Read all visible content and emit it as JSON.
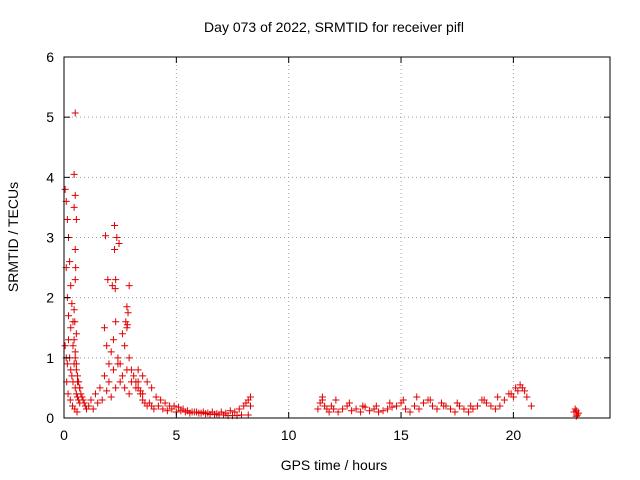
{
  "chart_data": {
    "type": "scatter",
    "title": "Day 073 of 2022, SRMTID for receiver pifl",
    "xlabel": "GPS time / hours",
    "ylabel": "SRMTID / TECUs",
    "xlim": [
      0,
      24.3
    ],
    "ylim": [
      0,
      6
    ],
    "xticks": [
      0,
      5,
      10,
      15,
      20
    ],
    "yticks": [
      0,
      1,
      2,
      3,
      4,
      5,
      6
    ],
    "grid": true,
    "legend": "none",
    "marker": "plus",
    "color": "#e00000",
    "series": [
      {
        "x": [
          0.05,
          0.1,
          0.15,
          0.2,
          0.25,
          0.3,
          0.35,
          0.4,
          0.45,
          0.5,
          0.55,
          0.6,
          0.65,
          0.7,
          0.75,
          0.8,
          0.85,
          0.9,
          0.95,
          1.0,
          0.05,
          0.1,
          0.15,
          0.2,
          0.25,
          0.3,
          0.35,
          0.4,
          0.45,
          0.5,
          0.55,
          0.6,
          0.65,
          0.7,
          0.1,
          0.15,
          0.2,
          0.3,
          0.4,
          0.45,
          0.5,
          0.55,
          0.6,
          0.7,
          0.12,
          0.18,
          0.28,
          0.38,
          0.48,
          0.58,
          0.5,
          0.45,
          0.5,
          0.45,
          0.55,
          0.5,
          0.52,
          0.5,
          0.48,
          0.55,
          1.1,
          1.2,
          1.3,
          1.4,
          1.5,
          1.6,
          1.7,
          1.8,
          1.9,
          2.0,
          2.1,
          2.2,
          2.3,
          2.4,
          2.5,
          2.6,
          2.7,
          2.8,
          2.9,
          3.0,
          1.8,
          1.9,
          2.0,
          2.1,
          2.2,
          2.3,
          2.4,
          2.5,
          2.6,
          2.7,
          2.8,
          2.9,
          3.0,
          3.1,
          3.2,
          3.3,
          3.4,
          3.5,
          1.85,
          1.95,
          2.15,
          2.25,
          2.35,
          2.45,
          2.25,
          2.3,
          2.28,
          2.8,
          2.85,
          2.9,
          2.75,
          2.82,
          3.2,
          3.3,
          3.4,
          3.5,
          3.6,
          3.7,
          3.8,
          3.9,
          4.0,
          4.2,
          4.4,
          4.6,
          4.8,
          5.0,
          5.2,
          5.4,
          5.6,
          5.8,
          6.0,
          6.2,
          6.4,
          6.6,
          6.8,
          7.0,
          7.2,
          7.4,
          7.6,
          7.8,
          8.0,
          8.1,
          8.2,
          8.3,
          3.3,
          3.5,
          3.7,
          3.9,
          4.1,
          4.3,
          4.5,
          4.7,
          4.9,
          5.1,
          5.3,
          5.5,
          5.7,
          5.9,
          6.1,
          6.3,
          6.5,
          6.7,
          6.9,
          7.1,
          7.3,
          7.5,
          7.7,
          7.9,
          8.2,
          8.3,
          11.3,
          11.4,
          11.5,
          11.6,
          11.7,
          11.8,
          11.9,
          12.0,
          12.2,
          12.4,
          12.6,
          12.8,
          13.0,
          13.2,
          13.4,
          13.6,
          13.8,
          14.0,
          14.2,
          14.4,
          14.6,
          14.8,
          15.0,
          15.2,
          15.4,
          15.6,
          15.8,
          16.0,
          16.2,
          16.4,
          16.6,
          16.8,
          17.0,
          17.2,
          17.4,
          17.6,
          17.8,
          18.0,
          18.2,
          18.4,
          18.6,
          18.8,
          19.0,
          19.2,
          19.4,
          19.6,
          19.8,
          20.0,
          20.2,
          20.4,
          20.6,
          20.8,
          11.5,
          12.1,
          12.7,
          13.3,
          13.9,
          14.5,
          15.1,
          15.7,
          16.3,
          16.9,
          17.5,
          18.1,
          18.7,
          19.3,
          19.9,
          20.3,
          20.5,
          20.1,
          22.7,
          22.8,
          22.85,
          22.9,
          22.75,
          22.8
        ],
        "y": [
          3.8,
          3.6,
          3.3,
          3.0,
          2.6,
          2.2,
          1.9,
          1.6,
          1.3,
          1.1,
          0.9,
          0.7,
          0.6,
          0.5,
          0.4,
          0.35,
          0.3,
          0.25,
          0.2,
          0.15,
          1.2,
          1.0,
          0.9,
          1.3,
          1.0,
          0.8,
          0.7,
          0.6,
          0.9,
          0.5,
          0.4,
          0.35,
          0.3,
          0.25,
          2.5,
          2.0,
          1.7,
          1.5,
          1.2,
          1.8,
          1.0,
          0.8,
          0.6,
          0.5,
          0.6,
          0.4,
          0.3,
          0.2,
          0.15,
          0.1,
          5.07,
          4.05,
          3.7,
          3.5,
          3.3,
          2.8,
          2.5,
          2.3,
          1.6,
          1.4,
          0.2,
          0.3,
          0.15,
          0.4,
          0.25,
          0.5,
          0.3,
          0.7,
          0.45,
          0.6,
          0.35,
          0.8,
          0.5,
          0.9,
          0.6,
          0.7,
          0.5,
          0.8,
          0.4,
          0.6,
          1.5,
          1.2,
          0.9,
          1.1,
          1.3,
          1.6,
          1.0,
          0.9,
          1.4,
          1.2,
          1.5,
          1.0,
          0.8,
          0.7,
          0.6,
          0.5,
          0.45,
          0.4,
          3.03,
          2.3,
          2.2,
          3.2,
          3.0,
          2.9,
          2.8,
          2.3,
          2.15,
          1.85,
          1.75,
          2.2,
          1.6,
          1.55,
          0.5,
          0.6,
          0.4,
          0.3,
          0.25,
          0.2,
          0.25,
          0.2,
          0.15,
          0.2,
          0.15,
          0.12,
          0.15,
          0.1,
          0.12,
          0.1,
          0.08,
          0.1,
          0.08,
          0.1,
          0.08,
          0.1,
          0.07,
          0.1,
          0.08,
          0.12,
          0.1,
          0.15,
          0.2,
          0.25,
          0.3,
          0.35,
          0.8,
          0.7,
          0.6,
          0.5,
          0.35,
          0.3,
          0.25,
          0.2,
          0.2,
          0.18,
          0.15,
          0.12,
          0.1,
          0.1,
          0.08,
          0.07,
          0.06,
          0.06,
          0.05,
          0.05,
          0.04,
          0.04,
          0.04,
          0.05,
          0.05,
          0.2,
          0.15,
          0.25,
          0.3,
          0.2,
          0.15,
          0.1,
          0.2,
          0.15,
          0.1,
          0.15,
          0.2,
          0.12,
          0.15,
          0.1,
          0.18,
          0.12,
          0.15,
          0.1,
          0.12,
          0.15,
          0.18,
          0.2,
          0.25,
          0.15,
          0.1,
          0.2,
          0.15,
          0.25,
          0.3,
          0.2,
          0.15,
          0.25,
          0.2,
          0.15,
          0.1,
          0.2,
          0.15,
          0.1,
          0.15,
          0.2,
          0.3,
          0.25,
          0.2,
          0.15,
          0.2,
          0.3,
          0.4,
          0.35,
          0.45,
          0.5,
          0.35,
          0.2,
          0.35,
          0.3,
          0.25,
          0.2,
          0.2,
          0.25,
          0.3,
          0.35,
          0.3,
          0.2,
          0.25,
          0.2,
          0.3,
          0.35,
          0.4,
          0.55,
          0.45,
          0.5,
          0.1,
          0.12,
          0.05,
          0.08,
          0.15,
          0.03
        ]
      }
    ]
  }
}
